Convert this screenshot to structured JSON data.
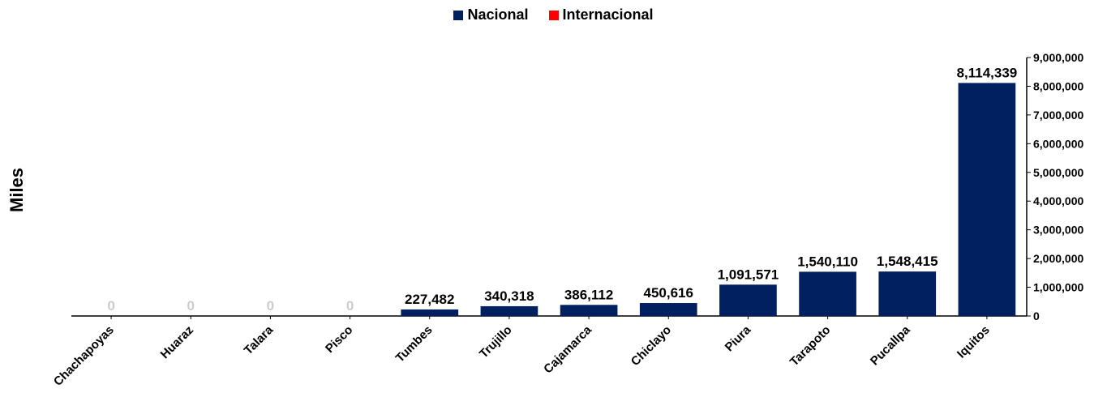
{
  "chart_data": {
    "type": "bar",
    "categories": [
      "Chachapoyas",
      "Huaraz",
      "Talara",
      "Pisco",
      "Tumbes",
      "Trujillo",
      "Cajamarca",
      "Chiclayo",
      "Piura",
      "Tarapoto",
      "Pucallpa",
      "Iquitos"
    ],
    "series": [
      {
        "name": "Nacional",
        "color": "#002060",
        "values": [
          0,
          0,
          0,
          0,
          227482,
          340318,
          386112,
          450616,
          1091571,
          1540110,
          1548415,
          8114339
        ]
      },
      {
        "name": "Internacional",
        "color": "#ff0000",
        "values": [
          0,
          0,
          0,
          0,
          0,
          0,
          0,
          0,
          0,
          0,
          0,
          0
        ]
      }
    ],
    "data_labels": [
      "0",
      "0",
      "0",
      "0",
      "227,482",
      "340,318",
      "386,112",
      "450,616",
      "1,091,571",
      "1,540,110",
      "1,548,415",
      "8,114,339"
    ],
    "title": "",
    "xlabel": "",
    "ylabel": "Miles",
    "ylim": [
      0,
      9000000
    ],
    "yticks": [
      0,
      1000000,
      2000000,
      3000000,
      4000000,
      5000000,
      6000000,
      7000000,
      8000000,
      9000000
    ],
    "ytick_labels": [
      "0",
      "1,000,000",
      "2,000,000",
      "3,000,000",
      "4,000,000",
      "5,000,000",
      "6,000,000",
      "7,000,000",
      "8,000,000",
      "9,000,000"
    ],
    "y_axis_side": "right",
    "legend_position": "top",
    "grid": false
  }
}
